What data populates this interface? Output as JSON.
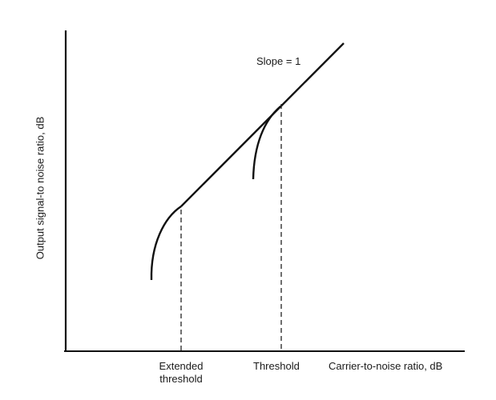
{
  "diagram": {
    "axes": {
      "y_label": "Output signal-to noise ratio, dB",
      "x_label": "Carrier-to-noise ratio, dB"
    },
    "annotations": {
      "slope": "Slope = 1",
      "threshold": "Threshold",
      "extended_threshold_line1": "Extended",
      "extended_threshold_line2": "threshold"
    },
    "curves": [
      "linear-above-threshold",
      "conventional-threshold-falloff",
      "extended-threshold-falloff"
    ]
  }
}
